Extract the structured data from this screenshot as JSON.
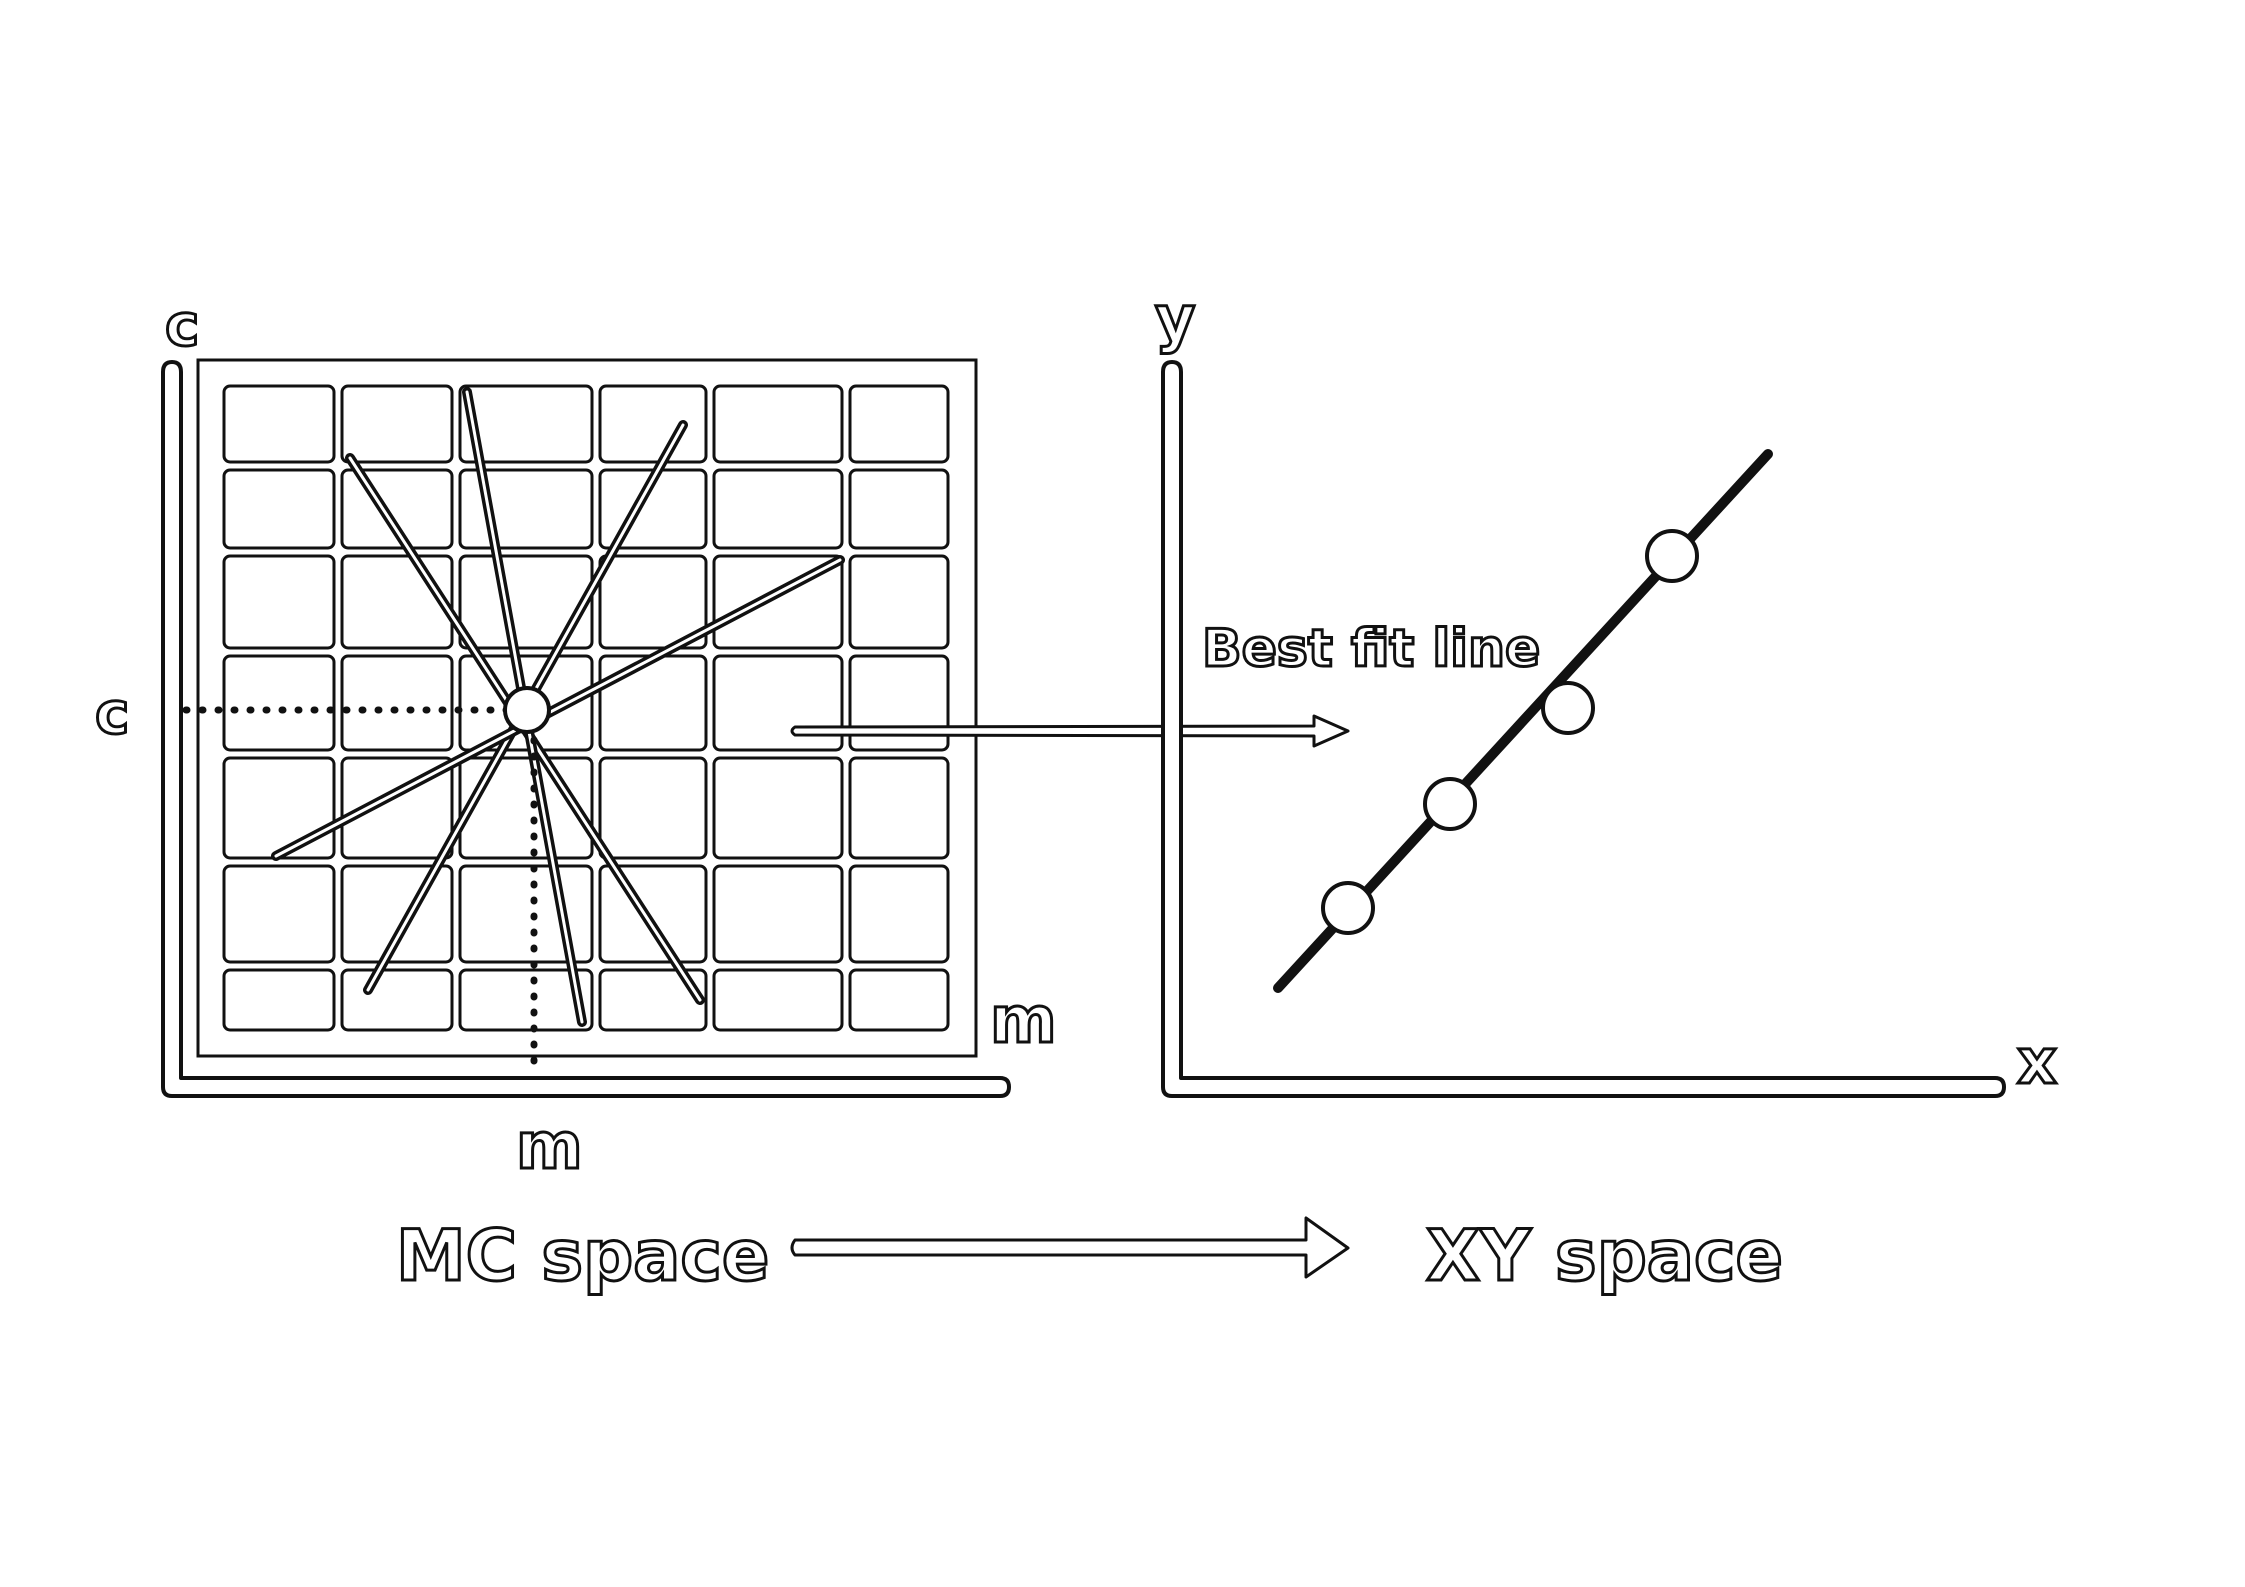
{
  "mc_space": {
    "axis_label_c_top": "c",
    "axis_label_m_right": "m",
    "value_label_c": "c",
    "value_label_m": "m",
    "caption": "MC space"
  },
  "xy_space": {
    "axis_label_y": "y",
    "axis_label_x": "x",
    "annotation": "Best fit line",
    "caption": "XY space"
  }
}
